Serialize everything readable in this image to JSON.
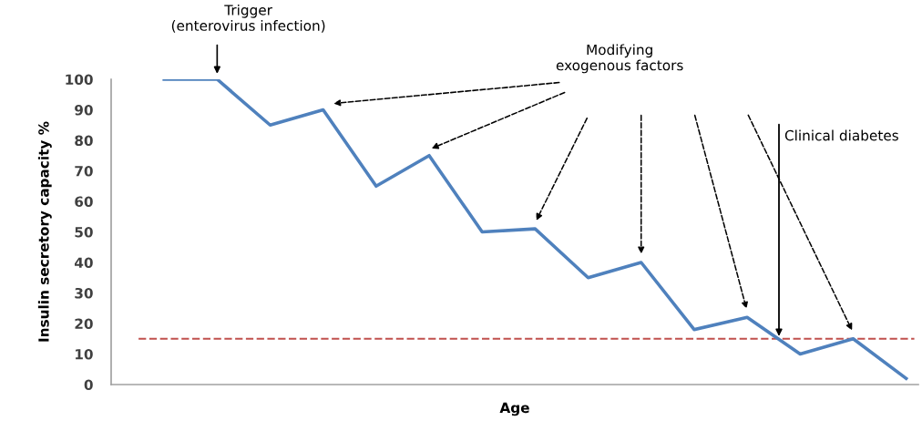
{
  "chart_data": {
    "type": "line",
    "ylabel": "Insulin secretory capacity %",
    "xlabel": "Age",
    "categories": [
      null,
      null,
      null,
      null,
      null,
      null,
      null,
      null,
      null,
      null,
      null,
      null,
      null,
      null,
      null
    ],
    "series": [
      {
        "color": "#4f81bd",
        "values": [
          100,
          100,
          85,
          90,
          65,
          75,
          50,
          51,
          35,
          40,
          18,
          22,
          10,
          15,
          2
        ]
      }
    ],
    "ylim": [
      0,
      100
    ],
    "yticks": [
      0,
      10,
      20,
      30,
      40,
      50,
      60,
      70,
      80,
      90,
      100
    ],
    "ref_lines": [
      {
        "axis": "y",
        "value": 15,
        "color": "#c0504d",
        "line_style": "dashed"
      }
    ],
    "annotations": [
      "Trigger\n(enterovirus infection)",
      "Modifying\nexogenous factors",
      "Clinical diabetes"
    ],
    "grid": false,
    "marker": "none",
    "line_style": "solid"
  }
}
